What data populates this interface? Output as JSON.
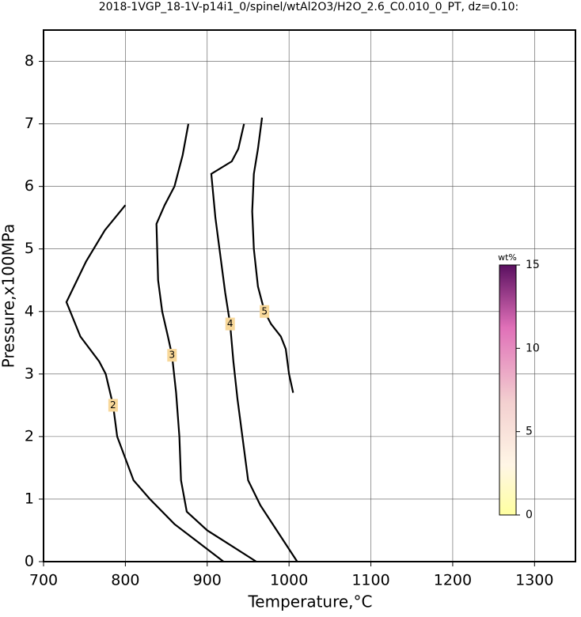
{
  "chart_data": {
    "type": "contour",
    "title": "2018-1VGP_18-1V-p14i1_0/spinel/wtAl2O3/H2O_2.6_C0.010_0_PT, dz=0.10:",
    "xlabel": "Temperature,°C",
    "ylabel": "Pressure,x100MPa",
    "xlim": [
      700,
      1350
    ],
    "ylim": [
      0,
      8.5
    ],
    "xticks": [
      700,
      800,
      900,
      1000,
      1100,
      1200,
      1300
    ],
    "yticks": [
      0,
      1,
      2,
      3,
      4,
      5,
      6,
      7,
      8
    ],
    "grid": true,
    "line_color": "#000000",
    "contours": [
      {
        "level": 2,
        "x": [
          800,
          775,
          752,
          728,
          745,
          768,
          776,
          785,
          790,
          810,
          830,
          860,
          890,
          920
        ],
        "y": [
          5.7,
          5.3,
          4.8,
          4.15,
          3.6,
          3.2,
          3.0,
          2.5,
          2.0,
          1.3,
          1.0,
          0.6,
          0.3,
          0
        ]
      },
      {
        "level": 3,
        "x": [
          877,
          870,
          860,
          848,
          838,
          840,
          845,
          852,
          857,
          862,
          866,
          868,
          875,
          900,
          930,
          960
        ],
        "y": [
          7.0,
          6.5,
          6.0,
          5.7,
          5.4,
          4.5,
          4.0,
          3.6,
          3.3,
          2.7,
          2.0,
          1.3,
          0.8,
          0.5,
          0.25,
          0
        ]
      },
      {
        "level": 4,
        "x": [
          945,
          938,
          930,
          905,
          910,
          915,
          922,
          928,
          932,
          937,
          943,
          950,
          965,
          985,
          1010
        ],
        "y": [
          7.0,
          6.6,
          6.4,
          6.2,
          5.5,
          5.0,
          4.3,
          3.8,
          3.2,
          2.6,
          2.0,
          1.3,
          0.9,
          0.5,
          0
        ]
      },
      {
        "level": 5,
        "x": [
          967,
          962,
          957,
          955,
          957,
          962,
          970,
          978,
          990,
          996,
          1000,
          1005
        ],
        "y": [
          7.1,
          6.6,
          6.2,
          5.6,
          5.0,
          4.4,
          4.0,
          3.8,
          3.6,
          3.4,
          3.0,
          2.7
        ]
      }
    ],
    "colorbar": {
      "label": "wt%",
      "clim": [
        0,
        15
      ],
      "ticks": [
        0,
        5,
        10,
        15
      ]
    }
  }
}
